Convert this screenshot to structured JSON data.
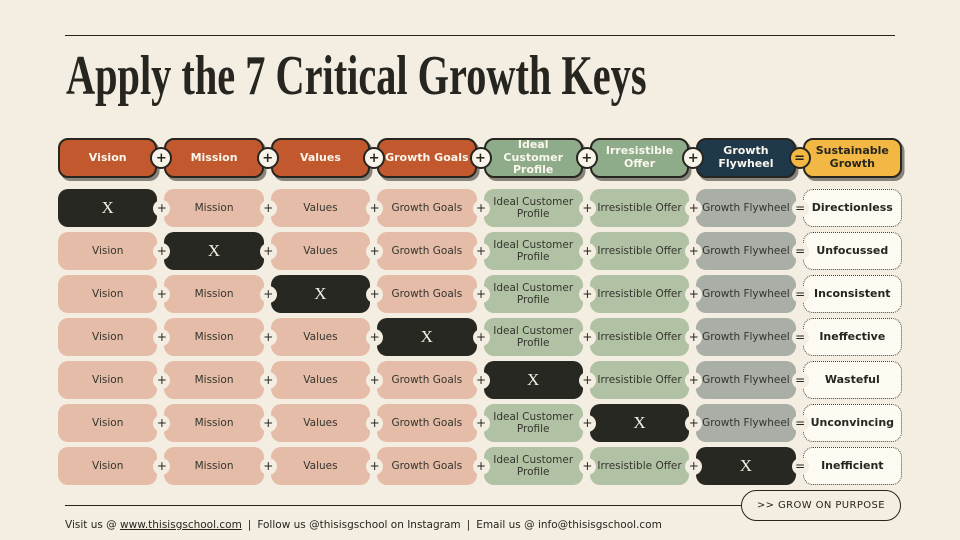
{
  "title": "Apply the 7 Critical Growth Keys",
  "connectors": {
    "plus": "+",
    "equals": "="
  },
  "header": {
    "pills": [
      {
        "label": "Vision",
        "style": "orange",
        "connector": "plus"
      },
      {
        "label": "Mission",
        "style": "orange",
        "connector": "plus"
      },
      {
        "label": "Values",
        "style": "orange",
        "connector": "plus"
      },
      {
        "label": "Growth Goals",
        "style": "orange",
        "connector": "plus"
      },
      {
        "label": "Ideal Customer Profile",
        "style": "hsage",
        "connector": "plus"
      },
      {
        "label": "Irresistible Offer",
        "style": "hsage",
        "connector": "plus"
      },
      {
        "label": "Growth Flywheel",
        "style": "navy",
        "connector": "equals"
      },
      {
        "label": "Sustainable Growth",
        "style": "yellow",
        "connector": null
      }
    ]
  },
  "matrix": {
    "x_symbol": "X",
    "columns": [
      {
        "label": "Vision",
        "style": "salmon"
      },
      {
        "label": "Mission",
        "style": "salmon"
      },
      {
        "label": "Values",
        "style": "salmon"
      },
      {
        "label": "Growth Goals",
        "style": "salmon"
      },
      {
        "label": "Ideal Customer Profile",
        "style": "sage"
      },
      {
        "label": "Irresistible Offer",
        "style": "sage"
      },
      {
        "label": "Growth Flywheel",
        "style": "gray"
      }
    ],
    "rows": [
      {
        "crossed_index": 0,
        "result": "Directionless"
      },
      {
        "crossed_index": 1,
        "result": "Unfocussed"
      },
      {
        "crossed_index": 2,
        "result": "Inconsistent"
      },
      {
        "crossed_index": 3,
        "result": "Ineffective"
      },
      {
        "crossed_index": 4,
        "result": "Wasteful"
      },
      {
        "crossed_index": 5,
        "result": "Unconvincing"
      },
      {
        "crossed_index": 6,
        "result": "Inefficient"
      }
    ]
  },
  "footer": {
    "visit_prefix": "Visit us @ ",
    "visit_link": "www.thisisgschool.com",
    "separator": "|",
    "follow_text": "Follow us @thisisgschool on Instagram",
    "email_prefix": "Email us @ ",
    "email": "info@thisisgschool.com",
    "cta": ">> GROW ON PURPOSE"
  },
  "colors": {
    "background": "#F3EEE1",
    "ink": "#26251F",
    "text": "#35342E",
    "shadow": "rgba(48,45,40,0.55)",
    "connector_bg": "#F8F4E9",
    "header_orange": "#C2582E",
    "header_sage": "#8EAC89",
    "header_navy": "#20394A",
    "header_yellow": "#F2B843",
    "cell_salmon": "#E5BCA7",
    "cell_sage": "#B0C2A3",
    "cell_gray": "#A9AEA6",
    "x_black": "#282822",
    "result_bg": "#FCFAF1"
  }
}
